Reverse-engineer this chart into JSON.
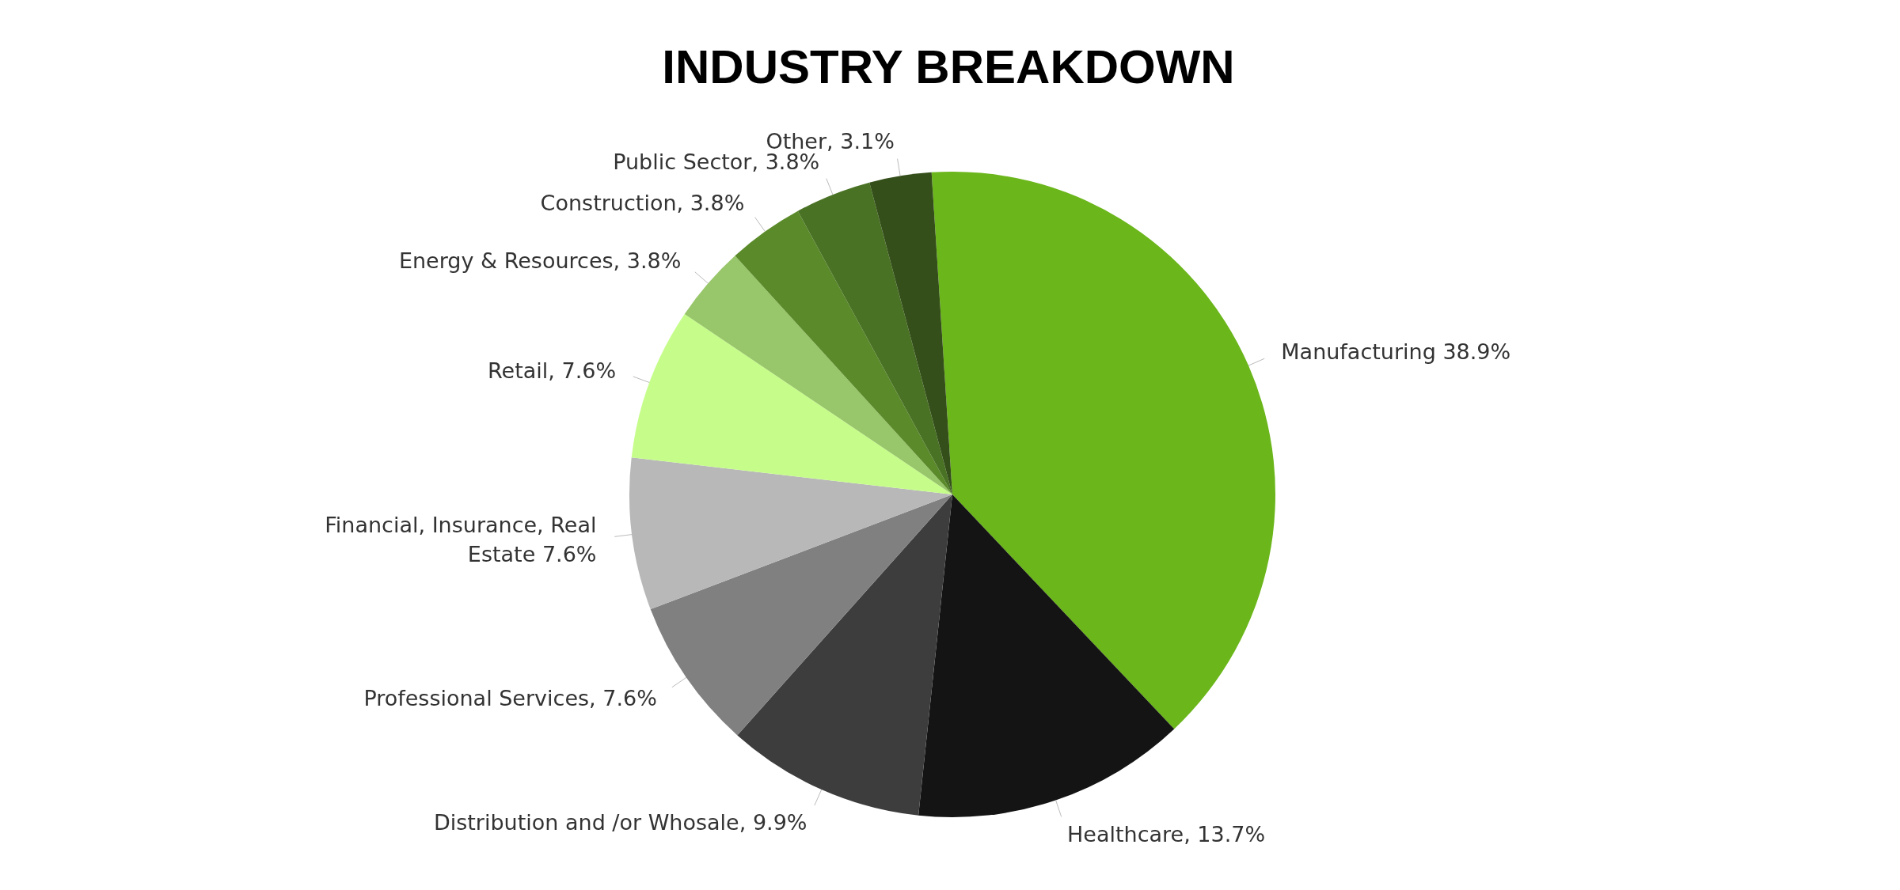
{
  "chart_data": {
    "type": "pie",
    "title": "INDUSTRY BREAKDOWN",
    "categories": [
      "Manufacturing",
      "Healthcare",
      "Distribution and /or Whosale",
      "Professional Services",
      "Financial, Insurance, Real Estate",
      "Retail",
      "Energy & Resources",
      "Construction",
      "Public Sector",
      "Other"
    ],
    "values": [
      38.9,
      13.7,
      9.9,
      7.6,
      7.6,
      7.6,
      3.8,
      3.8,
      3.8,
      3.1
    ],
    "value_labels": [
      " 38.9%",
      ", 13.7%",
      ", 9.9%",
      ", 7.6%",
      " 7.6%",
      ", 7.6%",
      ", 3.8%",
      ", 3.8%",
      ", 3.8%",
      ", 3.1%"
    ],
    "colors": [
      "#6bb61a",
      "#141414",
      "#3d3d3d",
      "#808080",
      "#b8b8b8",
      "#c6fd8a",
      "#98c66a",
      "#5a8a29",
      "#4a7224",
      "#344f1a"
    ],
    "legend": false
  }
}
